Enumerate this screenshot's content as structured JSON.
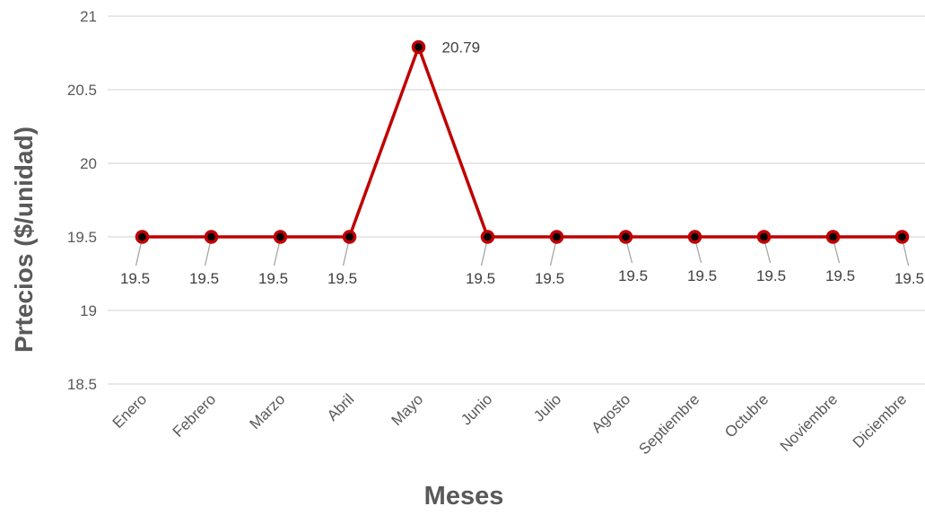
{
  "chart_data": {
    "type": "line",
    "title": "",
    "xlabel": "Meses",
    "ylabel": "Prtecios ($/unidad)",
    "ylim": [
      18.5,
      21
    ],
    "yticks": [
      "18.5",
      "19",
      "19.5",
      "20",
      "20.5",
      "21"
    ],
    "grid": true,
    "legend": "none",
    "categories": [
      "Enero",
      "Febrero",
      "Marzo",
      "Abril",
      "Mayo",
      "Junio",
      "Julio",
      "Agosto",
      "Septiembre",
      "Octubre",
      "Noviembre",
      "Diciembre"
    ],
    "series": [
      {
        "values": [
          19.5,
          19.5,
          19.5,
          19.5,
          20.79,
          19.5,
          19.5,
          19.5,
          19.5,
          19.5,
          19.5,
          19.5
        ],
        "labels": [
          "19.5",
          "19.5",
          "19.5",
          "19.5",
          "20.79",
          "19.5",
          "19.5",
          "19.5",
          "19.5",
          "19.5",
          "19.5",
          "19.5"
        ],
        "color": "#C00000"
      }
    ]
  }
}
